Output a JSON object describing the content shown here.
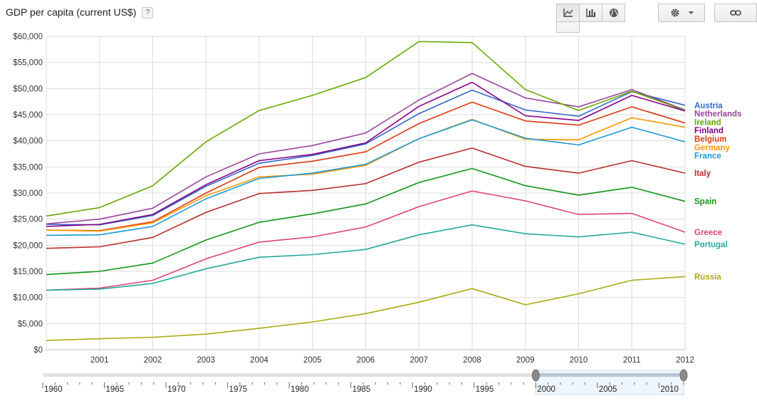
{
  "header": {
    "title": "GDP per capita (current US$)",
    "help_label": "?"
  },
  "toolbar": {
    "buttons": [
      {
        "name": "line-chart-icon",
        "active": true
      },
      {
        "name": "bar-chart-icon",
        "active": false
      },
      {
        "name": "map-icon",
        "active": false
      }
    ],
    "settings_icon": "gear-icon",
    "link_icon": "link-icon"
  },
  "chart_data": {
    "type": "line",
    "title": "GDP per capita (current US$)",
    "x": [
      2000,
      2001,
      2002,
      2003,
      2004,
      2005,
      2006,
      2007,
      2008,
      2009,
      2010,
      2011,
      2012
    ],
    "x_tick_labels": [
      "2001",
      "2002",
      "2003",
      "2004",
      "2005",
      "2006",
      "2007",
      "2008",
      "2009",
      "2010",
      "2011",
      "2012"
    ],
    "y_tick_labels": [
      "$0",
      "$5,000",
      "$10,000",
      "$15,000",
      "$20,000",
      "$25,000",
      "$30,000",
      "$35,000",
      "$40,000",
      "$45,000",
      "$50,000",
      "$55,000",
      "$60,000"
    ],
    "ylim": [
      0,
      60000
    ],
    "grid": true,
    "legend": "right",
    "series": [
      {
        "name": "Austria",
        "color": "#3366cc",
        "values": [
          24000,
          23900,
          25700,
          31300,
          35700,
          37200,
          39400,
          45200,
          49700,
          45900,
          44700,
          49400,
          46800
        ]
      },
      {
        "name": "Netherlands",
        "color": "#994499",
        "values": [
          24100,
          25000,
          27100,
          33100,
          37500,
          39100,
          41500,
          47800,
          52900,
          48200,
          46500,
          49800,
          45900
        ]
      },
      {
        "name": "Ireland",
        "color": "#66aa00",
        "values": [
          25600,
          27200,
          31400,
          39800,
          45800,
          48700,
          52100,
          59000,
          58800,
          49800,
          45800,
          49500,
          45800
        ]
      },
      {
        "name": "Finland",
        "color": "#880088",
        "values": [
          23600,
          24000,
          25900,
          31600,
          36200,
          37400,
          39600,
          46600,
          51200,
          44800,
          43900,
          48700,
          45700
        ]
      },
      {
        "name": "Belgium",
        "color": "#dc3912",
        "values": [
          22900,
          22800,
          24500,
          30000,
          34900,
          36100,
          37900,
          43300,
          47400,
          43800,
          43000,
          46500,
          43400
        ]
      },
      {
        "name": "Germany",
        "color": "#ff9900",
        "values": [
          22900,
          22700,
          24300,
          29500,
          33100,
          33600,
          35300,
          40400,
          44100,
          40300,
          40200,
          44400,
          42600
        ]
      },
      {
        "name": "France",
        "color": "#1a9ad6",
        "values": [
          21900,
          22000,
          23600,
          28900,
          32800,
          33800,
          35500,
          40400,
          44000,
          40500,
          39200,
          42600,
          39800
        ]
      },
      {
        "name": "Italy",
        "color": "#b82e2e",
        "values": [
          19400,
          19700,
          21500,
          26300,
          29900,
          30500,
          31800,
          35900,
          38600,
          35100,
          33800,
          36200,
          33800
        ]
      },
      {
        "name": "Spain",
        "color": "#109618",
        "values": [
          14400,
          15000,
          16600,
          21000,
          24400,
          26000,
          27900,
          32000,
          34700,
          31400,
          29600,
          31100,
          28400
        ]
      },
      {
        "name": "Greece",
        "color": "#dd4477",
        "values": [
          11400,
          11800,
          13300,
          17400,
          20600,
          21600,
          23500,
          27400,
          30400,
          28500,
          25900,
          26100,
          22500
        ]
      },
      {
        "name": "Portugal",
        "color": "#22aa99",
        "values": [
          11400,
          11600,
          12700,
          15500,
          17700,
          18200,
          19200,
          22000,
          23900,
          22200,
          21600,
          22500,
          20200
        ]
      },
      {
        "name": "Russia",
        "color": "#aaaa11",
        "values": [
          1770,
          2100,
          2380,
          2980,
          4100,
          5320,
          6920,
          9100,
          11700,
          8600,
          10700,
          13300,
          14000
        ]
      }
    ],
    "range_slider": {
      "labels": [
        "1960",
        "1965",
        "1970",
        "1975",
        "1980",
        "1985",
        "1990",
        "1995",
        "2000",
        "2005",
        "2010"
      ],
      "selected_from": 2000,
      "selected_to": 2012
    }
  }
}
